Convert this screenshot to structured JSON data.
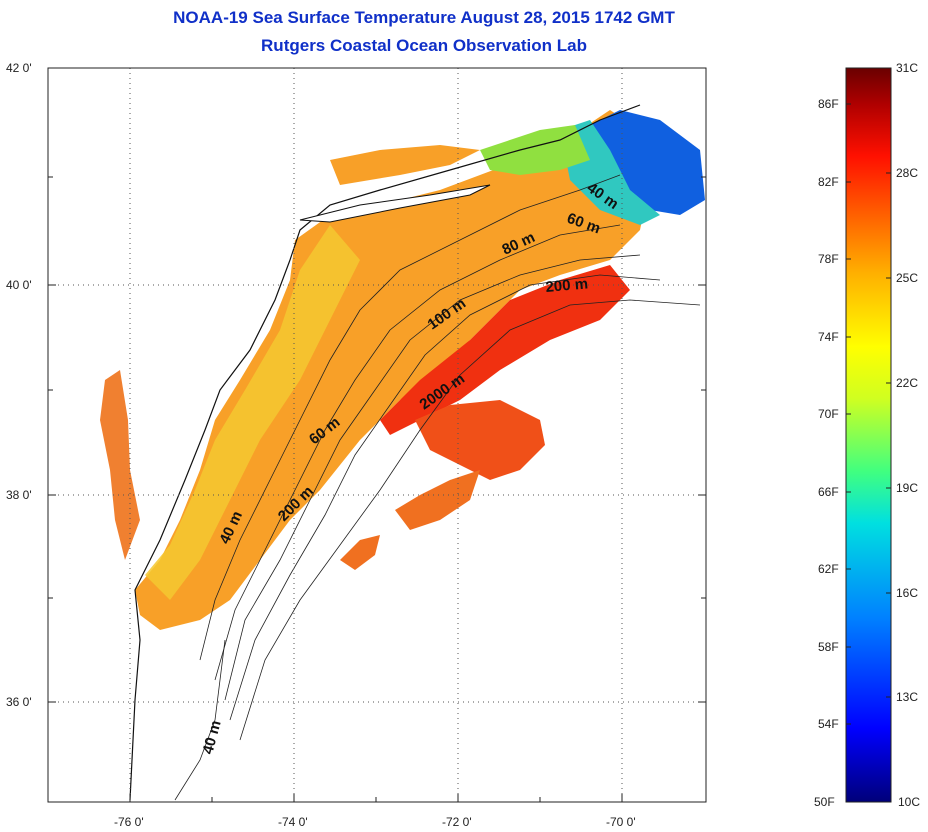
{
  "title": {
    "line1": "NOAA-19 Sea Surface Temperature August 28, 2015 1742 GMT",
    "line2": "Rutgers Coastal Ocean Observation Lab"
  },
  "map": {
    "lat_labels": [
      "42 0'",
      "40 0'",
      "38 0'",
      "36 0'"
    ],
    "lon_labels": [
      "-76 0'",
      "-74 0'",
      "-72 0'",
      "-70 0'"
    ],
    "lat_range": [
      35,
      42
    ],
    "lon_range": [
      -77,
      -69
    ],
    "contour_labels": [
      "40 m",
      "60 m",
      "80 m",
      "200 m",
      "100 m",
      "2000 m",
      "60 m",
      "200 m",
      "40 m",
      "40 m"
    ],
    "grid": "dotted"
  },
  "colorbar": {
    "fahrenheit_labels": [
      "86F",
      "82F",
      "78F",
      "74F",
      "70F",
      "66F",
      "62F",
      "58F",
      "54F",
      "50F"
    ],
    "celsius_labels": [
      "31C",
      "28C",
      "25C",
      "22C",
      "19C",
      "16C",
      "13C",
      "10C"
    ],
    "range_celsius": [
      10,
      31
    ],
    "colors": [
      "#00007a",
      "#0000ff",
      "#0080ff",
      "#00e0e0",
      "#40ff80",
      "#d0ff20",
      "#ffff00",
      "#ffb000",
      "#ff6000",
      "#ff1000",
      "#b00000",
      "#6a0000"
    ]
  }
}
